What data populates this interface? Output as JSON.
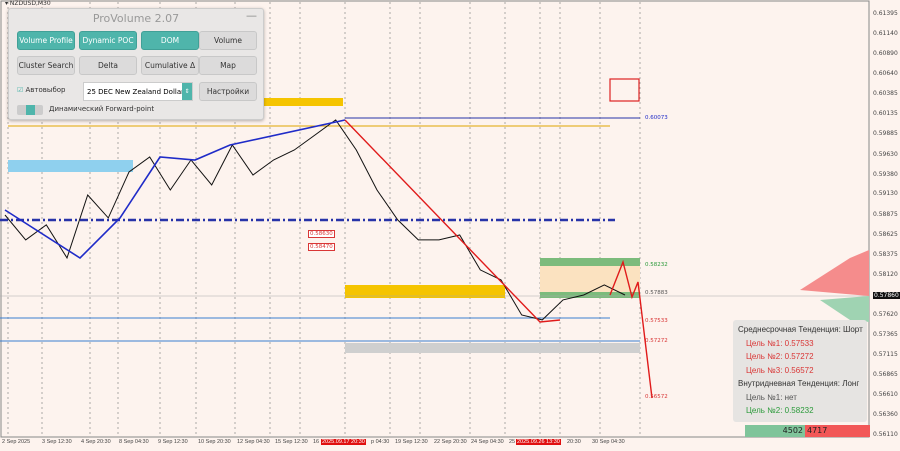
{
  "symbol": "▾ NZDUSD,M30",
  "panel": {
    "title": "ProVolume 2.07",
    "minimize": "—",
    "buttons": [
      {
        "label": "Volume Profile",
        "on": true
      },
      {
        "label": "Dynamic POC",
        "on": true
      },
      {
        "label": "DOM",
        "on": true
      },
      {
        "label": "Volume",
        "on": false
      },
      {
        "label": "Cluster Search",
        "on": false
      },
      {
        "label": "Delta",
        "on": false
      },
      {
        "label": "Cumulative Δ",
        "on": false
      },
      {
        "label": "Map",
        "on": false
      }
    ],
    "autoselect": "Автовыбор",
    "instrument": "25 DEC New Zealand Dollar",
    "settings": "Настройки",
    "forward_point": "Динамический Forward-point"
  },
  "info": {
    "mid_trend": "Среднесрочная Тенденция: Шорт",
    "mid_targets": [
      "Цель №1: 0.57533",
      "Цель №2: 0.57272",
      "Цель №3: 0.56572"
    ],
    "intra_trend": "Внутридневная Тенденция: Лонг",
    "intra_targets": [
      "Цель №1: нет",
      "Цель №2: 0.58232"
    ]
  },
  "bottom_bar": {
    "buy": "4502",
    "sell": "4717"
  },
  "colors": {
    "bg": "#fdf3ee",
    "accent": "#4fb5ab",
    "bull": "#2b9a3a",
    "bear": "#d93636",
    "price_line": "#111111",
    "trend_line": "#1f2bc8"
  },
  "chart_data": {
    "type": "line",
    "ylim": [
      0.5611,
      0.61395
    ],
    "y_ticks": [
      "0.61395",
      "0.61140",
      "0.60890",
      "0.60640",
      "0.60385",
      "0.60135",
      "0.59885",
      "0.59630",
      "0.59380",
      "0.59130",
      "0.58875",
      "0.58625",
      "0.58375",
      "0.58120",
      "0.57860",
      "0.57620",
      "0.57365",
      "0.57115",
      "0.56865",
      "0.56610",
      "0.56360",
      "0.56110"
    ],
    "current_price": "0.57860",
    "x_ticks": [
      "2 Sep 2025",
      "3 Sep 12:30",
      "4 Sep 20:30",
      "8 Sep 04:30",
      "9 Sep 12:30",
      "10 Sep 20:30",
      "12 Sep 04:30",
      "15 Sep 12:30",
      "16",
      "2025.09.17 20:30",
      "p 04:30",
      "19 Sep 12:30",
      "22 Sep 20:30",
      "24 Sep 04:30",
      "25",
      "2025.09.26 13:30",
      "20:30",
      "30 Sep 04:30"
    ],
    "closes": [
      0.58872,
      0.58559,
      0.58747,
      0.58333,
      0.59123,
      0.58835,
      0.59412,
      0.596,
      0.59186,
      0.59563,
      0.59249,
      0.59751,
      0.59374,
      0.59563,
      0.59688,
      0.59876,
      0.60065,
      0.59688,
      0.59186,
      0.5881,
      0.58559,
      0.58559,
      0.58621,
      0.58182,
      0.58057,
      0.57617,
      0.57555,
      0.57806,
      0.57868,
      0.57994,
      0.57868
    ],
    "level_labels": [
      {
        "text": "0.60073",
        "price": 0.60073,
        "color": "#1f2bc8"
      },
      {
        "text": "0.58630",
        "price": 0.5863,
        "color": "#d93636"
      },
      {
        "text": "0.58470",
        "price": 0.5847,
        "color": "#d93636"
      },
      {
        "text": "0.58232",
        "price": 0.58232,
        "color": "#2b9a3a"
      },
      {
        "text": "0.57883",
        "price": 0.57883,
        "color": "#555555"
      },
      {
        "text": "0.57533",
        "price": 0.57533,
        "color": "#d93636"
      },
      {
        "text": "0.57272",
        "price": 0.57272,
        "color": "#d93636"
      },
      {
        "text": "0.56572",
        "price": 0.56572,
        "color": "#d93636"
      }
    ]
  }
}
